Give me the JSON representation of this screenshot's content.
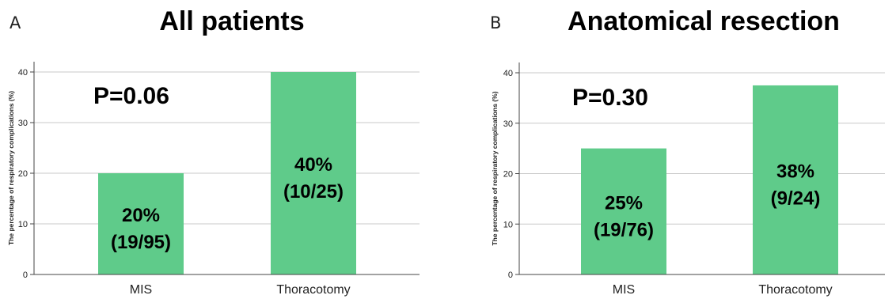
{
  "chart_data": [
    {
      "type": "bar",
      "panel": "A",
      "title": "All patients",
      "ylabel": "The percentage of respiratory complications (%)",
      "xlabel": "",
      "ylim": [
        0,
        42
      ],
      "yticks": [
        0,
        10,
        20,
        30,
        40
      ],
      "grid": true,
      "annotation": "P=0.06",
      "categories": [
        "MIS",
        "Thoracotomy"
      ],
      "values": [
        20,
        40
      ],
      "bar_labels": [
        [
          "20%",
          "(19/95)"
        ],
        [
          "40%",
          "(10/25)"
        ]
      ],
      "bar_color": "#5fcb8a"
    },
    {
      "type": "bar",
      "panel": "B",
      "title": "Anatomical resection",
      "ylabel": "The percentage of respiratory complications (%)",
      "xlabel": "",
      "ylim": [
        0,
        42
      ],
      "yticks": [
        0,
        10,
        20,
        30,
        40
      ],
      "grid": true,
      "annotation": "P=0.30",
      "categories": [
        "MIS",
        "Thoracotomy"
      ],
      "values": [
        25,
        37.5
      ],
      "bar_labels": [
        [
          "25%",
          "(19/76)"
        ],
        [
          "38%",
          "(9/24)"
        ]
      ],
      "bar_color": "#5fcb8a"
    }
  ]
}
